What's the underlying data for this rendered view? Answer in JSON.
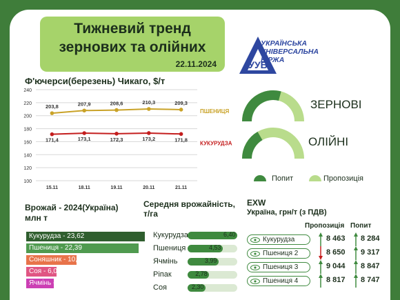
{
  "header": {
    "title_line1": "Тижневий тренд",
    "title_line2": "зернових та олійних",
    "date": "22.11.2024",
    "logo_line1": "УКРАЇНСЬКА",
    "logo_line2": "УНІВЕРСАЛЬНА",
    "logo_line3": "БІРЖА",
    "logo_letters": "УУБ"
  },
  "chart_data": [
    {
      "type": "line",
      "title": "Ф'ючерси(березень) Чикаго, $/т",
      "categories": [
        "15.11",
        "18.11",
        "19.11",
        "20.11",
        "21.11"
      ],
      "series": [
        {
          "name": "ПШЕНИЦЯ",
          "color": "#c9a227",
          "values": [
            203.8,
            207.9,
            208.6,
            210.3,
            209.3
          ],
          "labels": [
            "203,8",
            "207,9",
            "208,6",
            "210,3",
            "209,3"
          ]
        },
        {
          "name": "КУКУРУДЗА",
          "color": "#c41e1e",
          "values": [
            171.4,
            173.1,
            172.3,
            173.2,
            171.8
          ],
          "labels": [
            "171,4",
            "173,1",
            "172,3",
            "173,2",
            "171,8"
          ]
        }
      ],
      "ylim": [
        100,
        240
      ],
      "yticks": [
        100,
        120,
        140,
        160,
        180,
        200,
        220,
        240
      ],
      "grid": true
    },
    {
      "type": "bar",
      "title": "Врожай - 2024(Україна)",
      "subtitle": "млн т",
      "categories": [
        "Кукурудза",
        "Пшениця",
        "Соняшник",
        "Соя",
        "Ячмінь"
      ],
      "values": [
        23.62,
        22.39,
        10.08,
        6.01,
        5.56
      ],
      "labels": [
        "Кукурудза - 23,62",
        "Пшениця - 22,39",
        "Соняшник - 10,08",
        "Соя - 6,01",
        "Ячмінь - 5,56"
      ],
      "colors": [
        "#2f5e2e",
        "#4f9a4f",
        "#e8734a",
        "#e05583",
        "#cc3fb4"
      ]
    },
    {
      "type": "bar",
      "title": "Середня врожайність, т/га",
      "categories": [
        "Кукурудза",
        "Пшениця",
        "Ячмінь",
        "Ріпак",
        "Соя"
      ],
      "values": [
        6.4,
        4.53,
        3.99,
        2.78,
        2.3
      ],
      "labels": [
        "6,40",
        "4,53",
        "3,99",
        "2,78",
        "2,30"
      ]
    },
    {
      "type": "table",
      "title": "EXW",
      "subtitle": "Україна, грн/т (з ПДВ)",
      "columns": [
        "Пропозиція",
        "Попит"
      ],
      "rows": [
        {
          "name": "Кукурудза",
          "supply": "8 463",
          "demand": "8 284",
          "supply_dir": "up",
          "demand_dir": "up"
        },
        {
          "name": "Пшениця 2",
          "supply": "8 650",
          "demand": "9 317",
          "supply_dir": "down",
          "demand_dir": "up"
        },
        {
          "name": "Пшениця 3",
          "supply": "9 044",
          "demand": "8 847",
          "supply_dir": "up",
          "demand_dir": "up"
        },
        {
          "name": "Пшениця 4",
          "supply": "8 817",
          "demand": "8 747",
          "supply_dir": "up",
          "demand_dir": "up"
        }
      ]
    }
  ],
  "gauges": {
    "grain_label": "ЗЕРНОВІ",
    "oil_label": "ОЛІЙНІ",
    "legend_demand": "Попит",
    "legend_supply": "Пропозиція",
    "demand_color": "#3f8a3f",
    "supply_color": "#b9dc8c"
  },
  "colors": {
    "frame": "#3f7d3a",
    "title_bg": "#a6d36a",
    "up_arrow": "#3f8a3f",
    "down_arrow": "#c41e1e"
  }
}
